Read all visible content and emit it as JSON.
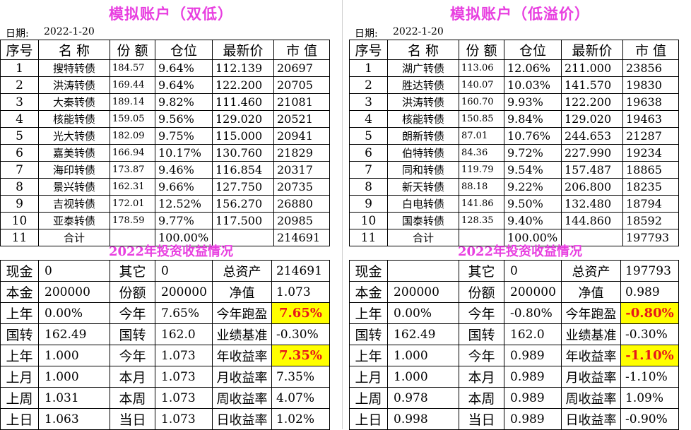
{
  "panels": [
    {
      "title": "模拟账户（双低）",
      "date_label": "日期:",
      "date_value": "2022-1-20",
      "headers": [
        "序号",
        "名 称",
        "份 额",
        "仓位",
        "最新价",
        "市 值"
      ],
      "rows": [
        {
          "idx": "1",
          "name": "搜特转债",
          "share": "184.57",
          "pos": "9.64%",
          "price": "112.139",
          "mv": "20697"
        },
        {
          "idx": "2",
          "name": "洪涛转债",
          "share": "169.44",
          "pos": "9.64%",
          "price": "122.200",
          "mv": "20705"
        },
        {
          "idx": "3",
          "name": "大秦转债",
          "share": "189.14",
          "pos": "9.82%",
          "price": "111.460",
          "mv": "21081"
        },
        {
          "idx": "4",
          "name": "核能转债",
          "share": "159.05",
          "pos": "9.56%",
          "price": "129.020",
          "mv": "20521"
        },
        {
          "idx": "5",
          "name": "光大转债",
          "share": "182.09",
          "pos": "9.75%",
          "price": "115.000",
          "mv": "20941"
        },
        {
          "idx": "6",
          "name": "嘉美转债",
          "share": "166.94",
          "pos": "10.17%",
          "price": "130.760",
          "mv": "21829"
        },
        {
          "idx": "7",
          "name": "海印转债",
          "share": "173.87",
          "pos": "9.46%",
          "price": "116.854",
          "mv": "20317"
        },
        {
          "idx": "8",
          "name": "景兴转债",
          "share": "162.31",
          "pos": "9.66%",
          "price": "127.750",
          "mv": "20735"
        },
        {
          "idx": "9",
          "name": "吉视转债",
          "share": "172.01",
          "pos": "12.52%",
          "price": "156.270",
          "mv": "26880"
        },
        {
          "idx": "10",
          "name": "亚泰转债",
          "share": "178.59",
          "pos": "9.77%",
          "price": "117.500",
          "mv": "20985"
        }
      ],
      "total": {
        "idx": "11",
        "name": "合计",
        "pos": "100.00%",
        "mv": "214691"
      },
      "subtitle": "2022年投资收益情况",
      "summary": {
        "r1": {
          "k1": "现金",
          "v1": "0",
          "k2": "其它",
          "v2": "0",
          "k3": "总资产",
          "v3": "214691"
        },
        "r2": {
          "k1": "本金",
          "v1": "200000",
          "k2": "份额",
          "v2": "200000",
          "k3": "净值",
          "v3": "1.073"
        },
        "r3": {
          "k1": "上年",
          "v1": "0.00%",
          "k2": "今年",
          "v2": "7.65%",
          "k3": "今年跑盈",
          "v3": "7.65%"
        },
        "r4": {
          "k1": "国转",
          "v1": "162.49",
          "k2": "国转",
          "v2": "162.0",
          "k3": "业绩基准",
          "v3": "-0.30%"
        },
        "r5": {
          "k1": "上年",
          "v1": "1.000",
          "k2": "今年",
          "v2": "1.073",
          "k3": "年收益率",
          "v3": "7.35%"
        },
        "r6": {
          "k1": "上月",
          "v1": "1.000",
          "k2": "本月",
          "v2": "1.073",
          "k3": "月收益率",
          "v3": "7.35%"
        },
        "r7": {
          "k1": "上周",
          "v1": "1.031",
          "k2": "本周",
          "v2": "1.073",
          "k3": "周收益率",
          "v3": "4.07%"
        },
        "r8": {
          "k1": "上日",
          "v1": "1.063",
          "k2": "当日",
          "v2": "1.073",
          "k3": "日收益率",
          "v3": "1.02%"
        }
      }
    },
    {
      "title": "模拟账户（低溢价）",
      "date_label": "日期:",
      "date_value": "2022-1-20",
      "headers": [
        "序号",
        "名 称",
        "份 额",
        "仓位",
        "最新价",
        "市 值"
      ],
      "rows": [
        {
          "idx": "1",
          "name": "湖广转债",
          "share": "113.06",
          "pos": "12.06%",
          "price": "211.000",
          "mv": "23856"
        },
        {
          "idx": "2",
          "name": "胜达转债",
          "share": "140.07",
          "pos": "10.03%",
          "price": "141.570",
          "mv": "19830"
        },
        {
          "idx": "3",
          "name": "洪涛转债",
          "share": "160.70",
          "pos": "9.93%",
          "price": "122.200",
          "mv": "19638"
        },
        {
          "idx": "4",
          "name": "核能转债",
          "share": "150.85",
          "pos": "9.84%",
          "price": "129.020",
          "mv": "19463"
        },
        {
          "idx": "5",
          "name": "朗新转债",
          "share": "87.01",
          "pos": "10.76%",
          "price": "244.653",
          "mv": "21287"
        },
        {
          "idx": "6",
          "name": "伯特转债",
          "share": "84.36",
          "pos": "9.72%",
          "price": "227.990",
          "mv": "19234"
        },
        {
          "idx": "7",
          "name": "同和转债",
          "share": "119.79",
          "pos": "9.54%",
          "price": "157.487",
          "mv": "18865"
        },
        {
          "idx": "8",
          "name": "新天转债",
          "share": "88.18",
          "pos": "9.22%",
          "price": "206.800",
          "mv": "18235"
        },
        {
          "idx": "9",
          "name": "白电转债",
          "share": "141.86",
          "pos": "9.50%",
          "price": "132.480",
          "mv": "18794"
        },
        {
          "idx": "10",
          "name": "国泰转债",
          "share": "128.35",
          "pos": "9.40%",
          "price": "144.860",
          "mv": "18592"
        }
      ],
      "total": {
        "idx": "11",
        "name": "合计",
        "pos": "100.00%",
        "mv": "197793"
      },
      "subtitle": "2022年投资收益情况",
      "summary": {
        "r1": {
          "k1": "现金",
          "v1": "",
          "k2": "其它",
          "v2": "0",
          "k3": "总资产",
          "v3": "197793"
        },
        "r2": {
          "k1": "本金",
          "v1": "200000",
          "k2": "份额",
          "v2": "200000",
          "k3": "净值",
          "v3": "0.989"
        },
        "r3": {
          "k1": "上年",
          "v1": "0.00%",
          "k2": "今年",
          "v2": "-0.80%",
          "k3": "今年跑盈",
          "v3": "-0.80%"
        },
        "r4": {
          "k1": "国转",
          "v1": "162.49",
          "k2": "国转",
          "v2": "162.0",
          "k3": "业绩基准",
          "v3": "-0.30%"
        },
        "r5": {
          "k1": "上年",
          "v1": "1.000",
          "k2": "今年",
          "v2": "0.989",
          "k3": "年收益率",
          "v3": "-1.10%"
        },
        "r6": {
          "k1": "上月",
          "v1": "1.000",
          "k2": "本月",
          "v2": "0.989",
          "k3": "月收益率",
          "v3": "-1.10%"
        },
        "r7": {
          "k1": "上周",
          "v1": "0.978",
          "k2": "本周",
          "v2": "0.989",
          "k3": "周收益率",
          "v3": "1.09%"
        },
        "r8": {
          "k1": "上日",
          "v1": "0.998",
          "k2": "当日",
          "v2": "0.989",
          "k3": "日收益率",
          "v3": "-0.90%"
        }
      }
    }
  ],
  "colors": {
    "title": "#e83fe0",
    "highlight_bg": "#ffff00",
    "highlight_text": "#e8161a"
  }
}
